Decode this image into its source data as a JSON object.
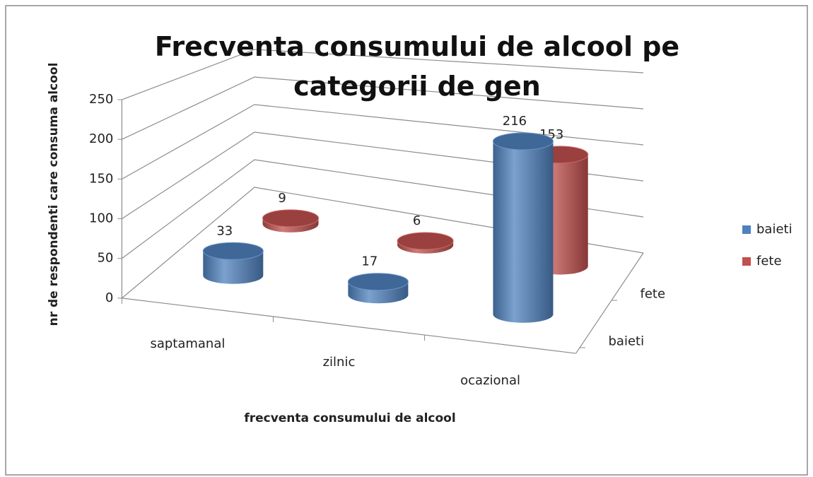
{
  "chart_data": {
    "type": "bar3d",
    "title": "Frecventa consumului de alcool pe categorii de gen",
    "x_label": "frecventa consumului de alcool",
    "y_label": "nr de respondenti care consuma alcool",
    "categories": [
      "saptamanal",
      "zilnic",
      "ocazional"
    ],
    "series": [
      {
        "name": "baieti",
        "color": "#4f81bd",
        "values": [
          33,
          17,
          216
        ]
      },
      {
        "name": "fete",
        "color": "#c0504d",
        "values": [
          9,
          6,
          153
        ]
      }
    ],
    "ylim": [
      0,
      250
    ],
    "yticks": [
      0,
      50,
      100,
      150,
      200,
      250
    ],
    "grid": true,
    "legend": "right"
  }
}
